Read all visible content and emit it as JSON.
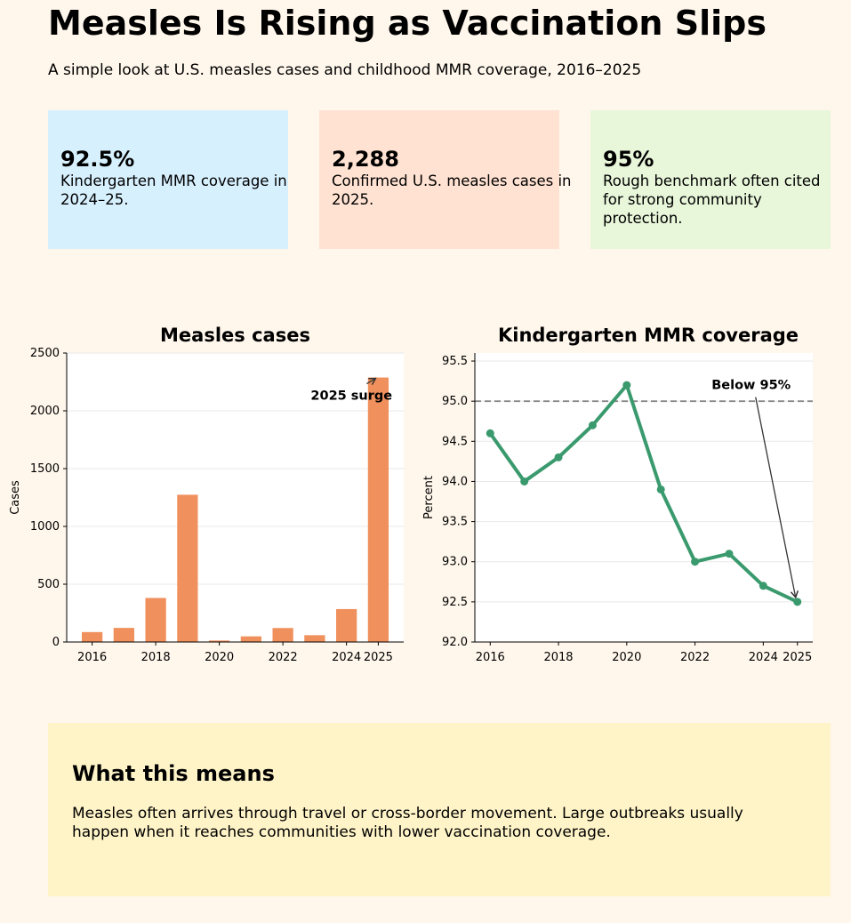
{
  "header": {
    "title": "Measles Is Rising as Vaccination Slips",
    "subtitle": "A simple look at U.S. measles cases and childhood MMR coverage, 2016–2025"
  },
  "cards": [
    {
      "value": "92.5%",
      "text": "Kindergarten MMR coverage in 2024–25.",
      "color": "#d7f0fe"
    },
    {
      "value": "2,288",
      "text": "Confirmed U.S. measles cases in 2025.",
      "color": "#ffe2d2"
    },
    {
      "value": "95%",
      "text": "Rough benchmark often cited for strong community protection.",
      "color": "#e8f6da"
    }
  ],
  "chart_data": [
    {
      "type": "bar",
      "title": "Measles cases",
      "xlabel": "",
      "ylabel": "Cases",
      "x": [
        2016,
        2017,
        2018,
        2019,
        2020,
        2021,
        2022,
        2023,
        2024,
        2025
      ],
      "values": [
        86,
        122,
        381,
        1274,
        13,
        49,
        121,
        59,
        285,
        2288
      ],
      "xticks": [
        2016,
        2018,
        2020,
        2022,
        2024,
        2025
      ],
      "yticks": [
        0,
        500,
        1000,
        1500,
        2000,
        2500
      ],
      "ylim": [
        0,
        2500
      ],
      "grid": true,
      "color": "#f0905c",
      "annotation": {
        "text": "2025 surge",
        "x": 2025,
        "y": 2288
      }
    },
    {
      "type": "line",
      "title": "Kindergarten MMR coverage",
      "xlabel": "",
      "ylabel": "Percent",
      "x": [
        2016,
        2017,
        2018,
        2019,
        2020,
        2021,
        2022,
        2023,
        2024,
        2025
      ],
      "values": [
        94.6,
        94.0,
        94.3,
        94.7,
        95.2,
        93.9,
        93.0,
        93.1,
        92.7,
        92.5
      ],
      "xticks": [
        2016,
        2018,
        2020,
        2022,
        2024,
        2025
      ],
      "yticks": [
        92.0,
        92.5,
        93.0,
        93.5,
        94.0,
        94.5,
        95.0,
        95.5
      ],
      "ylim": [
        92.0,
        95.6
      ],
      "grid": true,
      "color": "#3a9a6e",
      "reference_line": {
        "y": 95.0,
        "color": "#888888"
      },
      "annotation": {
        "text": "Below 95%",
        "x": 2025,
        "y": 92.5
      }
    }
  ],
  "note": {
    "title": "What this means",
    "body": "Measles often arrives through travel or cross-border movement. Large outbreaks usually happen when it reaches communities with lower vaccination coverage."
  }
}
